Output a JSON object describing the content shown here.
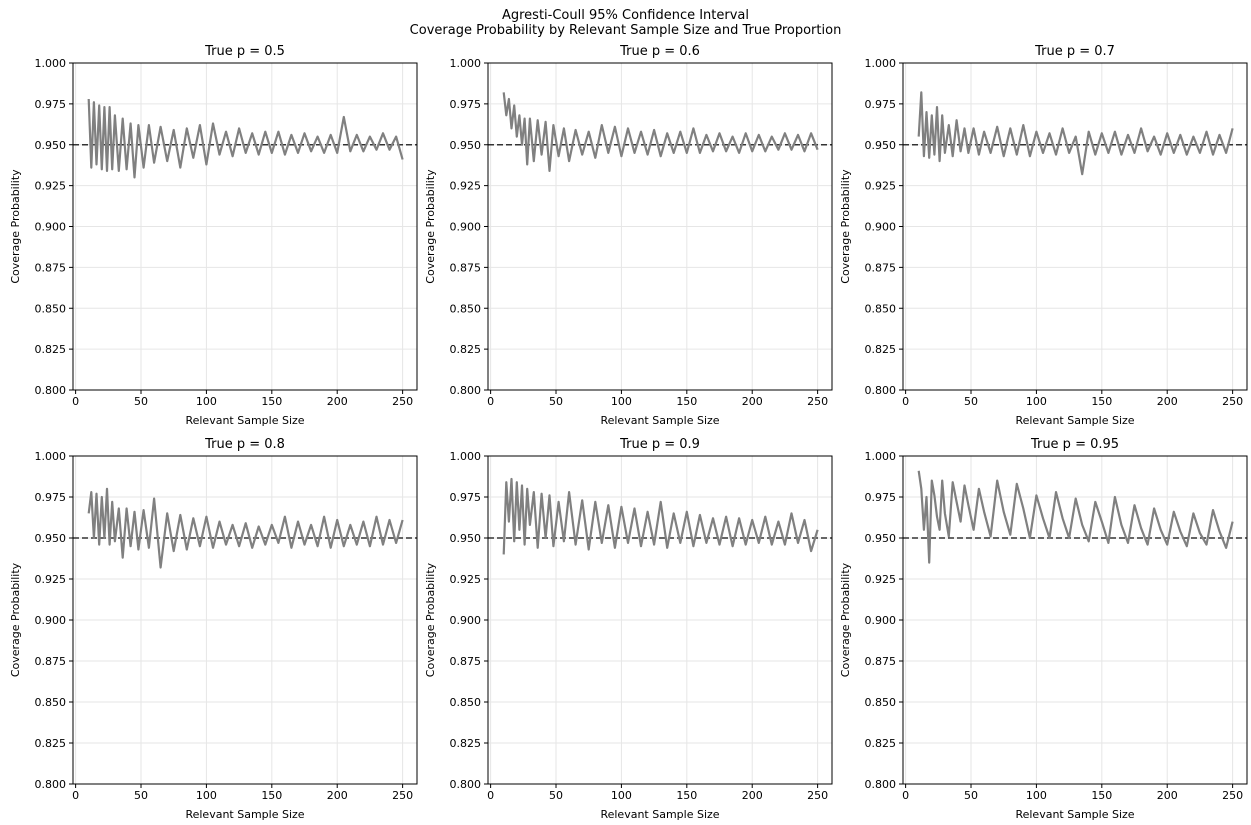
{
  "figure": {
    "title_line1": "Agresti-Coull 95% Confidence Interval",
    "title_line2": "Coverage Probability by Relevant Sample Size and True Proportion"
  },
  "colors": {
    "series": "#808080",
    "reference": "#333333",
    "grid": "#e6e6e6",
    "axis": "#000000"
  },
  "chart_data": [
    {
      "type": "line",
      "title": "True p = 0.5",
      "p": 0.5,
      "xlabel": "Relevant Sample Size",
      "ylabel": "Coverage Probability",
      "xlim": [
        -2,
        261
      ],
      "ylim": [
        0.8,
        1.0
      ],
      "xticks": [
        0,
        50,
        100,
        150,
        200,
        250
      ],
      "yticks": [
        "0.800",
        "0.825",
        "0.850",
        "0.875",
        "0.900",
        "0.925",
        "0.950",
        "0.975",
        "1.000"
      ],
      "reference_line": 0.95,
      "grid": true,
      "x": [
        10,
        12,
        14,
        16,
        18,
        20,
        22,
        24,
        26,
        28,
        30,
        33,
        36,
        39,
        42,
        45,
        48,
        52,
        56,
        60,
        65,
        70,
        75,
        80,
        85,
        90,
        95,
        100,
        105,
        110,
        115,
        120,
        125,
        130,
        135,
        140,
        145,
        150,
        155,
        160,
        165,
        170,
        175,
        180,
        185,
        190,
        195,
        200,
        205,
        210,
        215,
        220,
        225,
        230,
        235,
        240,
        245,
        250
      ],
      "y": [
        0.978,
        0.936,
        0.976,
        0.938,
        0.974,
        0.935,
        0.973,
        0.934,
        0.973,
        0.935,
        0.968,
        0.934,
        0.966,
        0.935,
        0.963,
        0.93,
        0.962,
        0.936,
        0.962,
        0.939,
        0.961,
        0.94,
        0.959,
        0.936,
        0.96,
        0.942,
        0.962,
        0.938,
        0.963,
        0.944,
        0.958,
        0.943,
        0.96,
        0.945,
        0.957,
        0.944,
        0.958,
        0.945,
        0.958,
        0.944,
        0.956,
        0.945,
        0.957,
        0.946,
        0.955,
        0.945,
        0.956,
        0.945,
        0.967,
        0.946,
        0.956,
        0.946,
        0.955,
        0.947,
        0.957,
        0.947,
        0.955,
        0.941
      ]
    },
    {
      "type": "line",
      "title": "True p = 0.6",
      "p": 0.6,
      "xlabel": "Relevant Sample Size",
      "ylabel": "Coverage Probability",
      "xlim": [
        -2,
        261
      ],
      "ylim": [
        0.8,
        1.0
      ],
      "xticks": [
        0,
        50,
        100,
        150,
        200,
        250
      ],
      "yticks": [
        "0.800",
        "0.825",
        "0.850",
        "0.875",
        "0.900",
        "0.925",
        "0.950",
        "0.975",
        "1.000"
      ],
      "reference_line": 0.95,
      "grid": true,
      "x": [
        10,
        12,
        14,
        16,
        18,
        20,
        22,
        24,
        26,
        28,
        30,
        33,
        36,
        39,
        42,
        45,
        48,
        52,
        56,
        60,
        65,
        70,
        75,
        80,
        85,
        90,
        95,
        100,
        105,
        110,
        115,
        120,
        125,
        130,
        135,
        140,
        145,
        150,
        155,
        160,
        165,
        170,
        175,
        180,
        185,
        190,
        195,
        200,
        205,
        210,
        215,
        220,
        225,
        230,
        235,
        240,
        245,
        250
      ],
      "y": [
        0.982,
        0.968,
        0.978,
        0.96,
        0.974,
        0.955,
        0.968,
        0.95,
        0.966,
        0.938,
        0.966,
        0.94,
        0.965,
        0.944,
        0.964,
        0.934,
        0.962,
        0.943,
        0.96,
        0.94,
        0.959,
        0.944,
        0.958,
        0.942,
        0.962,
        0.945,
        0.961,
        0.943,
        0.96,
        0.945,
        0.958,
        0.944,
        0.959,
        0.943,
        0.957,
        0.945,
        0.958,
        0.945,
        0.96,
        0.945,
        0.956,
        0.946,
        0.957,
        0.946,
        0.955,
        0.945,
        0.957,
        0.946,
        0.956,
        0.946,
        0.955,
        0.947,
        0.957,
        0.947,
        0.956,
        0.946,
        0.957,
        0.947
      ]
    },
    {
      "type": "line",
      "title": "True p = 0.7",
      "p": 0.7,
      "xlabel": "Relevant Sample Size",
      "ylabel": "Coverage Probability",
      "xlim": [
        -2,
        261
      ],
      "ylim": [
        0.8,
        1.0
      ],
      "xticks": [
        0,
        50,
        100,
        150,
        200,
        250
      ],
      "yticks": [
        "0.800",
        "0.825",
        "0.850",
        "0.875",
        "0.900",
        "0.925",
        "0.950",
        "0.975",
        "1.000"
      ],
      "reference_line": 0.95,
      "grid": true,
      "x": [
        10,
        12,
        14,
        16,
        18,
        20,
        22,
        24,
        26,
        28,
        30,
        33,
        36,
        39,
        42,
        45,
        48,
        52,
        56,
        60,
        65,
        70,
        75,
        80,
        85,
        90,
        95,
        100,
        105,
        110,
        115,
        120,
        125,
        130,
        135,
        140,
        145,
        150,
        155,
        160,
        165,
        170,
        175,
        180,
        185,
        190,
        195,
        200,
        205,
        210,
        215,
        220,
        225,
        230,
        235,
        240,
        245,
        250
      ],
      "y": [
        0.955,
        0.982,
        0.943,
        0.97,
        0.942,
        0.968,
        0.944,
        0.973,
        0.94,
        0.968,
        0.945,
        0.962,
        0.943,
        0.965,
        0.946,
        0.96,
        0.945,
        0.96,
        0.944,
        0.958,
        0.945,
        0.961,
        0.943,
        0.96,
        0.944,
        0.962,
        0.943,
        0.958,
        0.945,
        0.957,
        0.944,
        0.96,
        0.945,
        0.955,
        0.932,
        0.958,
        0.944,
        0.957,
        0.945,
        0.958,
        0.944,
        0.956,
        0.945,
        0.96,
        0.946,
        0.955,
        0.944,
        0.957,
        0.945,
        0.956,
        0.944,
        0.955,
        0.945,
        0.958,
        0.944,
        0.956,
        0.945,
        0.96
      ]
    },
    {
      "type": "line",
      "title": "True p = 0.8",
      "p": 0.8,
      "xlabel": "Relevant Sample Size",
      "ylabel": "Coverage Probability",
      "xlim": [
        -2,
        261
      ],
      "ylim": [
        0.8,
        1.0
      ],
      "xticks": [
        0,
        50,
        100,
        150,
        200,
        250
      ],
      "yticks": [
        "0.800",
        "0.825",
        "0.850",
        "0.875",
        "0.900",
        "0.925",
        "0.950",
        "0.975",
        "1.000"
      ],
      "reference_line": 0.95,
      "grid": true,
      "x": [
        10,
        12,
        14,
        16,
        18,
        20,
        22,
        24,
        26,
        28,
        30,
        33,
        36,
        39,
        42,
        45,
        48,
        52,
        56,
        60,
        65,
        70,
        75,
        80,
        85,
        90,
        95,
        100,
        105,
        110,
        115,
        120,
        125,
        130,
        135,
        140,
        145,
        150,
        155,
        160,
        165,
        170,
        175,
        180,
        185,
        190,
        195,
        200,
        205,
        210,
        215,
        220,
        225,
        230,
        235,
        240,
        245,
        250
      ],
      "y": [
        0.965,
        0.978,
        0.95,
        0.977,
        0.946,
        0.975,
        0.95,
        0.98,
        0.946,
        0.972,
        0.948,
        0.968,
        0.938,
        0.968,
        0.945,
        0.966,
        0.943,
        0.967,
        0.944,
        0.974,
        0.932,
        0.965,
        0.942,
        0.964,
        0.943,
        0.962,
        0.945,
        0.963,
        0.944,
        0.96,
        0.946,
        0.958,
        0.945,
        0.959,
        0.944,
        0.957,
        0.946,
        0.958,
        0.947,
        0.963,
        0.944,
        0.96,
        0.946,
        0.958,
        0.945,
        0.963,
        0.944,
        0.961,
        0.945,
        0.958,
        0.946,
        0.96,
        0.945,
        0.963,
        0.946,
        0.961,
        0.947,
        0.961
      ]
    },
    {
      "type": "line",
      "title": "True p = 0.9",
      "p": 0.9,
      "xlabel": "Relevant Sample Size",
      "ylabel": "Coverage Probability",
      "xlim": [
        -2,
        261
      ],
      "ylim": [
        0.8,
        1.0
      ],
      "xticks": [
        0,
        50,
        100,
        150,
        200,
        250
      ],
      "yticks": [
        "0.800",
        "0.825",
        "0.850",
        "0.875",
        "0.900",
        "0.925",
        "0.950",
        "0.975",
        "1.000"
      ],
      "reference_line": 0.95,
      "grid": true,
      "x": [
        10,
        12,
        14,
        16,
        18,
        20,
        22,
        24,
        26,
        28,
        30,
        33,
        36,
        39,
        42,
        45,
        48,
        52,
        56,
        60,
        65,
        70,
        75,
        80,
        85,
        90,
        95,
        100,
        105,
        110,
        115,
        120,
        125,
        130,
        135,
        140,
        145,
        150,
        155,
        160,
        165,
        170,
        175,
        180,
        185,
        190,
        195,
        200,
        205,
        210,
        215,
        220,
        225,
        230,
        235,
        240,
        245,
        250
      ],
      "y": [
        0.94,
        0.984,
        0.96,
        0.986,
        0.948,
        0.984,
        0.955,
        0.982,
        0.946,
        0.98,
        0.958,
        0.978,
        0.944,
        0.977,
        0.95,
        0.976,
        0.945,
        0.972,
        0.948,
        0.978,
        0.946,
        0.973,
        0.943,
        0.972,
        0.947,
        0.97,
        0.944,
        0.969,
        0.947,
        0.968,
        0.945,
        0.966,
        0.946,
        0.972,
        0.944,
        0.965,
        0.947,
        0.966,
        0.945,
        0.964,
        0.947,
        0.962,
        0.946,
        0.963,
        0.945,
        0.962,
        0.946,
        0.961,
        0.947,
        0.963,
        0.946,
        0.96,
        0.946,
        0.965,
        0.947,
        0.961,
        0.942,
        0.955
      ]
    },
    {
      "type": "line",
      "title": "True p = 0.95",
      "p": 0.95,
      "xlabel": "Relevant Sample Size",
      "ylabel": "Coverage Probability",
      "xlim": [
        -2,
        261
      ],
      "ylim": [
        0.8,
        1.0
      ],
      "xticks": [
        0,
        50,
        100,
        150,
        200,
        250
      ],
      "yticks": [
        "0.800",
        "0.825",
        "0.850",
        "0.875",
        "0.900",
        "0.925",
        "0.950",
        "0.975",
        "1.000"
      ],
      "reference_line": 0.95,
      "grid": true,
      "x": [
        10,
        12,
        14,
        16,
        18,
        20,
        22,
        24,
        26,
        28,
        30,
        33,
        36,
        39,
        42,
        45,
        48,
        52,
        56,
        60,
        65,
        70,
        75,
        80,
        85,
        90,
        95,
        100,
        105,
        110,
        115,
        120,
        125,
        130,
        135,
        140,
        145,
        150,
        155,
        160,
        165,
        170,
        175,
        180,
        185,
        190,
        195,
        200,
        205,
        210,
        215,
        220,
        225,
        230,
        235,
        240,
        245,
        250
      ],
      "y": [
        0.991,
        0.98,
        0.955,
        0.975,
        0.935,
        0.985,
        0.976,
        0.963,
        0.955,
        0.985,
        0.965,
        0.951,
        0.984,
        0.972,
        0.96,
        0.982,
        0.97,
        0.955,
        0.98,
        0.966,
        0.951,
        0.985,
        0.966,
        0.952,
        0.983,
        0.968,
        0.95,
        0.976,
        0.962,
        0.95,
        0.978,
        0.962,
        0.95,
        0.974,
        0.958,
        0.948,
        0.972,
        0.96,
        0.947,
        0.975,
        0.958,
        0.947,
        0.97,
        0.956,
        0.946,
        0.968,
        0.955,
        0.946,
        0.966,
        0.954,
        0.945,
        0.965,
        0.953,
        0.946,
        0.967,
        0.954,
        0.944,
        0.96
      ]
    }
  ]
}
